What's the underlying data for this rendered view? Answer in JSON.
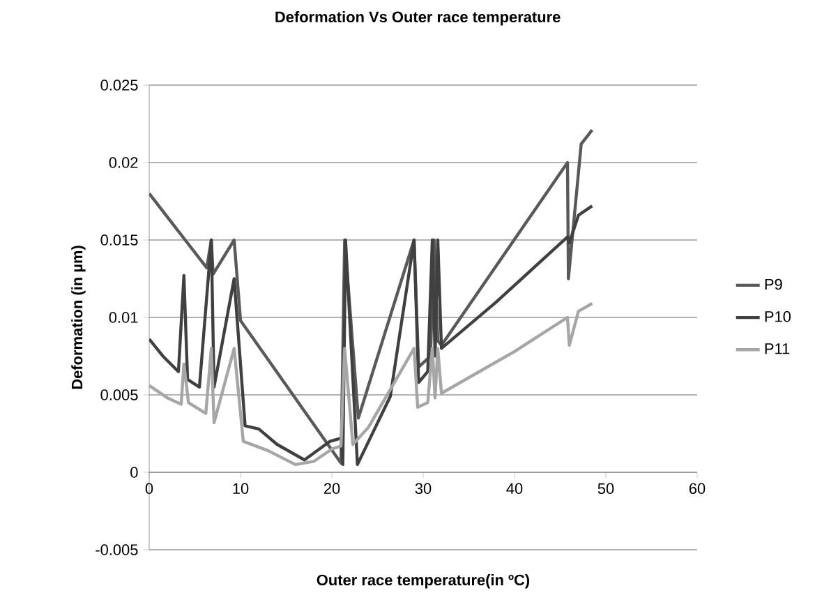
{
  "chart_data": {
    "type": "line",
    "title": "Deformation Vs Outer race temperature",
    "xlabel": "Outer race temperature(in ºC)",
    "ylabel": "Deformation (in µm)",
    "xlim": [
      0,
      60
    ],
    "xticks": [
      0,
      10,
      20,
      30,
      40,
      50,
      60
    ],
    "ylim": [
      -0.005,
      0.025
    ],
    "yticks": [
      -0.005,
      0,
      0.005,
      0.01,
      0.015,
      0.02,
      0.025
    ],
    "grid": "y",
    "legend": "right",
    "marker": "none",
    "line_style": "solid",
    "series": [
      {
        "name": "P9",
        "color": "#595959",
        "x": [
          0,
          6.3,
          6.8,
          7.0,
          9.3,
          10.0,
          21.0,
          21.4,
          22.9,
          29.0,
          29.5,
          30.8,
          31.2,
          31.6,
          32.0,
          45.8,
          45.9,
          47.3,
          48.5
        ],
        "values": [
          0.018,
          0.0132,
          0.015,
          0.0128,
          0.015,
          0.0098,
          0.0006,
          0.015,
          0.0035,
          0.015,
          0.0068,
          0.0075,
          0.015,
          0.0085,
          0.0082,
          0.02,
          0.0125,
          0.0212,
          0.0221
        ]
      },
      {
        "name": "P10",
        "color": "#404040",
        "x": [
          0,
          1.5,
          3.2,
          3.8,
          4.2,
          5.5,
          6.8,
          7.1,
          9.3,
          10.5,
          12,
          14,
          17,
          19.8,
          21,
          21.2,
          21.5,
          22.8,
          26.4,
          29,
          29.5,
          30.5,
          31,
          31.3,
          31.6,
          32,
          38,
          45.8,
          46,
          47,
          48.5
        ],
        "values": [
          0.0086,
          0.0075,
          0.0065,
          0.0127,
          0.006,
          0.0055,
          0.015,
          0.0055,
          0.0125,
          0.003,
          0.0028,
          0.0018,
          0.0008,
          0.002,
          0.0022,
          0.0005,
          0.015,
          0.0005,
          0.0049,
          0.015,
          0.0058,
          0.0065,
          0.015,
          0.0075,
          0.015,
          0.008,
          0.011,
          0.0152,
          0.0148,
          0.0166,
          0.0172
        ]
      },
      {
        "name": "P11",
        "color": "#a6a6a6",
        "x": [
          0,
          2,
          3.5,
          3.8,
          4.3,
          6.2,
          6.8,
          7.1,
          9.3,
          10.3,
          13,
          16,
          18,
          20,
          21,
          21.4,
          22.3,
          24,
          29,
          29.4,
          30.5,
          31,
          31.3,
          31.6,
          32,
          40,
          45.8,
          46,
          47,
          48.5
        ],
        "values": [
          0.0056,
          0.0048,
          0.0044,
          0.007,
          0.0045,
          0.0038,
          0.008,
          0.0032,
          0.008,
          0.002,
          0.0014,
          0.0005,
          0.0007,
          0.0015,
          0.0017,
          0.008,
          0.0018,
          0.0029,
          0.008,
          0.0042,
          0.0045,
          0.008,
          0.0048,
          0.008,
          0.0051,
          0.0078,
          0.01,
          0.0082,
          0.0104,
          0.0109
        ]
      }
    ]
  }
}
